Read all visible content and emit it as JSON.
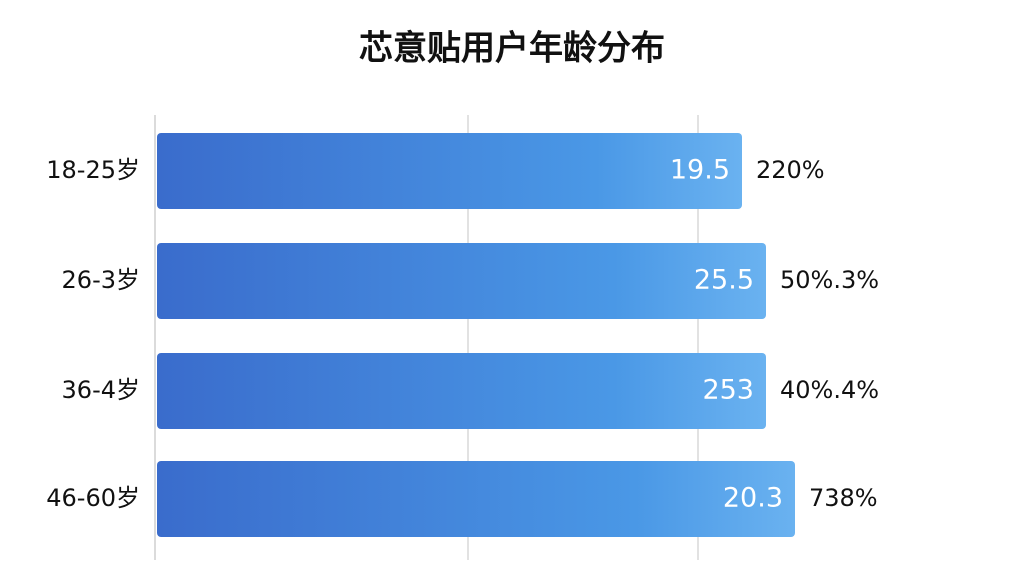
{
  "title": "芯意贴用户年龄分布",
  "rows": [
    {
      "label": "18-25岁",
      "value_text": "19.5",
      "percent_text": "220%"
    },
    {
      "label": "26-3岁",
      "value_text": "25.5",
      "percent_text": "50%.3%"
    },
    {
      "label": "36-4岁",
      "value_text": "253",
      "percent_text": "40%.4%"
    },
    {
      "label": "46-60岁",
      "value_text": "20.3",
      "percent_text": "738%"
    }
  ]
}
